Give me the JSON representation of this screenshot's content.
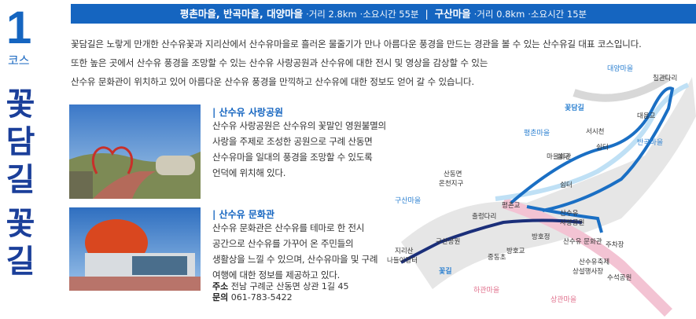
{
  "course": {
    "number": "1",
    "label": "코스",
    "title": [
      "꽃",
      "담",
      "길",
      "꽃",
      "길"
    ]
  },
  "info_bar": {
    "route1": "평촌마을, 반곡마을, 대양마을",
    "route1_distance": "·거리 2.8km",
    "route1_time": "·소요시간 55분",
    "separator": "|",
    "route2": "구산마을",
    "route2_distance": "·거리 0.8km",
    "route2_time": "·소요시간 15분"
  },
  "intro": [
    "꽃담길은 노랗게 만개한 산수유꽃과 지리산에서 산수유마을로 흘러온 물줄기가 만나 아름다운 풍경을 만드는 경관을 볼 수 있는 산수유길 대표 코스입니다.",
    "또한 높은 곳에서 산수유 풍경을 조망할 수 있는 산수유 사랑공원과 산수유에 대한 전시 및 영상을 감상할 수 있는",
    "산수유 문화관이 위치하고 있어 아름다운 산수유 풍경을 만끽하고 산수유에 대한 정보도 얻어 갈 수 있습니다."
  ],
  "sections": [
    {
      "heading": "| 산수유 사랑공원",
      "lines": [
        "산수유 사랑공원은 산수유의 꽃말인 영원불멸의",
        "사랑을 주제로 조성한 공원으로 구례 산동면",
        "산수유마을 일대의 풍경을 조망할 수 있도록",
        "언덕에 위치해 있다."
      ]
    },
    {
      "heading": "| 산수유 문화관",
      "lines": [
        "산수유 문화관은 산수유를 테마로 한 전시",
        "공간으로 산수유를 가꾸어 온 주민들의",
        "생활상을 느낄 수 있으며, 산수유마을 및 구례",
        "여행에 대한 정보를 제공하고 있다."
      ]
    }
  ],
  "address": {
    "label": "주소",
    "text": "전남 구례군 산동면 상관 1길 45"
  },
  "contact": {
    "label": "문의",
    "text": "061-783-5422"
  },
  "map": {
    "labels": [
      "대양마을",
      "칠관다리",
      "꽃담길",
      "서시천",
      "대음교",
      "평촌마을",
      "마을회관",
      "쉼터",
      "쉼터",
      "반곡마을",
      "산동면",
      "온천지구",
      "쉼터",
      "구산마을",
      "평촌교",
      "출렁다리",
      "산수유",
      "사랑공원",
      "구산공원",
      "방호정",
      "방호교",
      "산수유 문화관",
      "주차장",
      "중동초",
      "지리산",
      "나들이장터",
      "꽃길",
      "산수유축제",
      "상설행사장",
      "수석공원",
      "하관마을",
      "상관마을"
    ]
  }
}
